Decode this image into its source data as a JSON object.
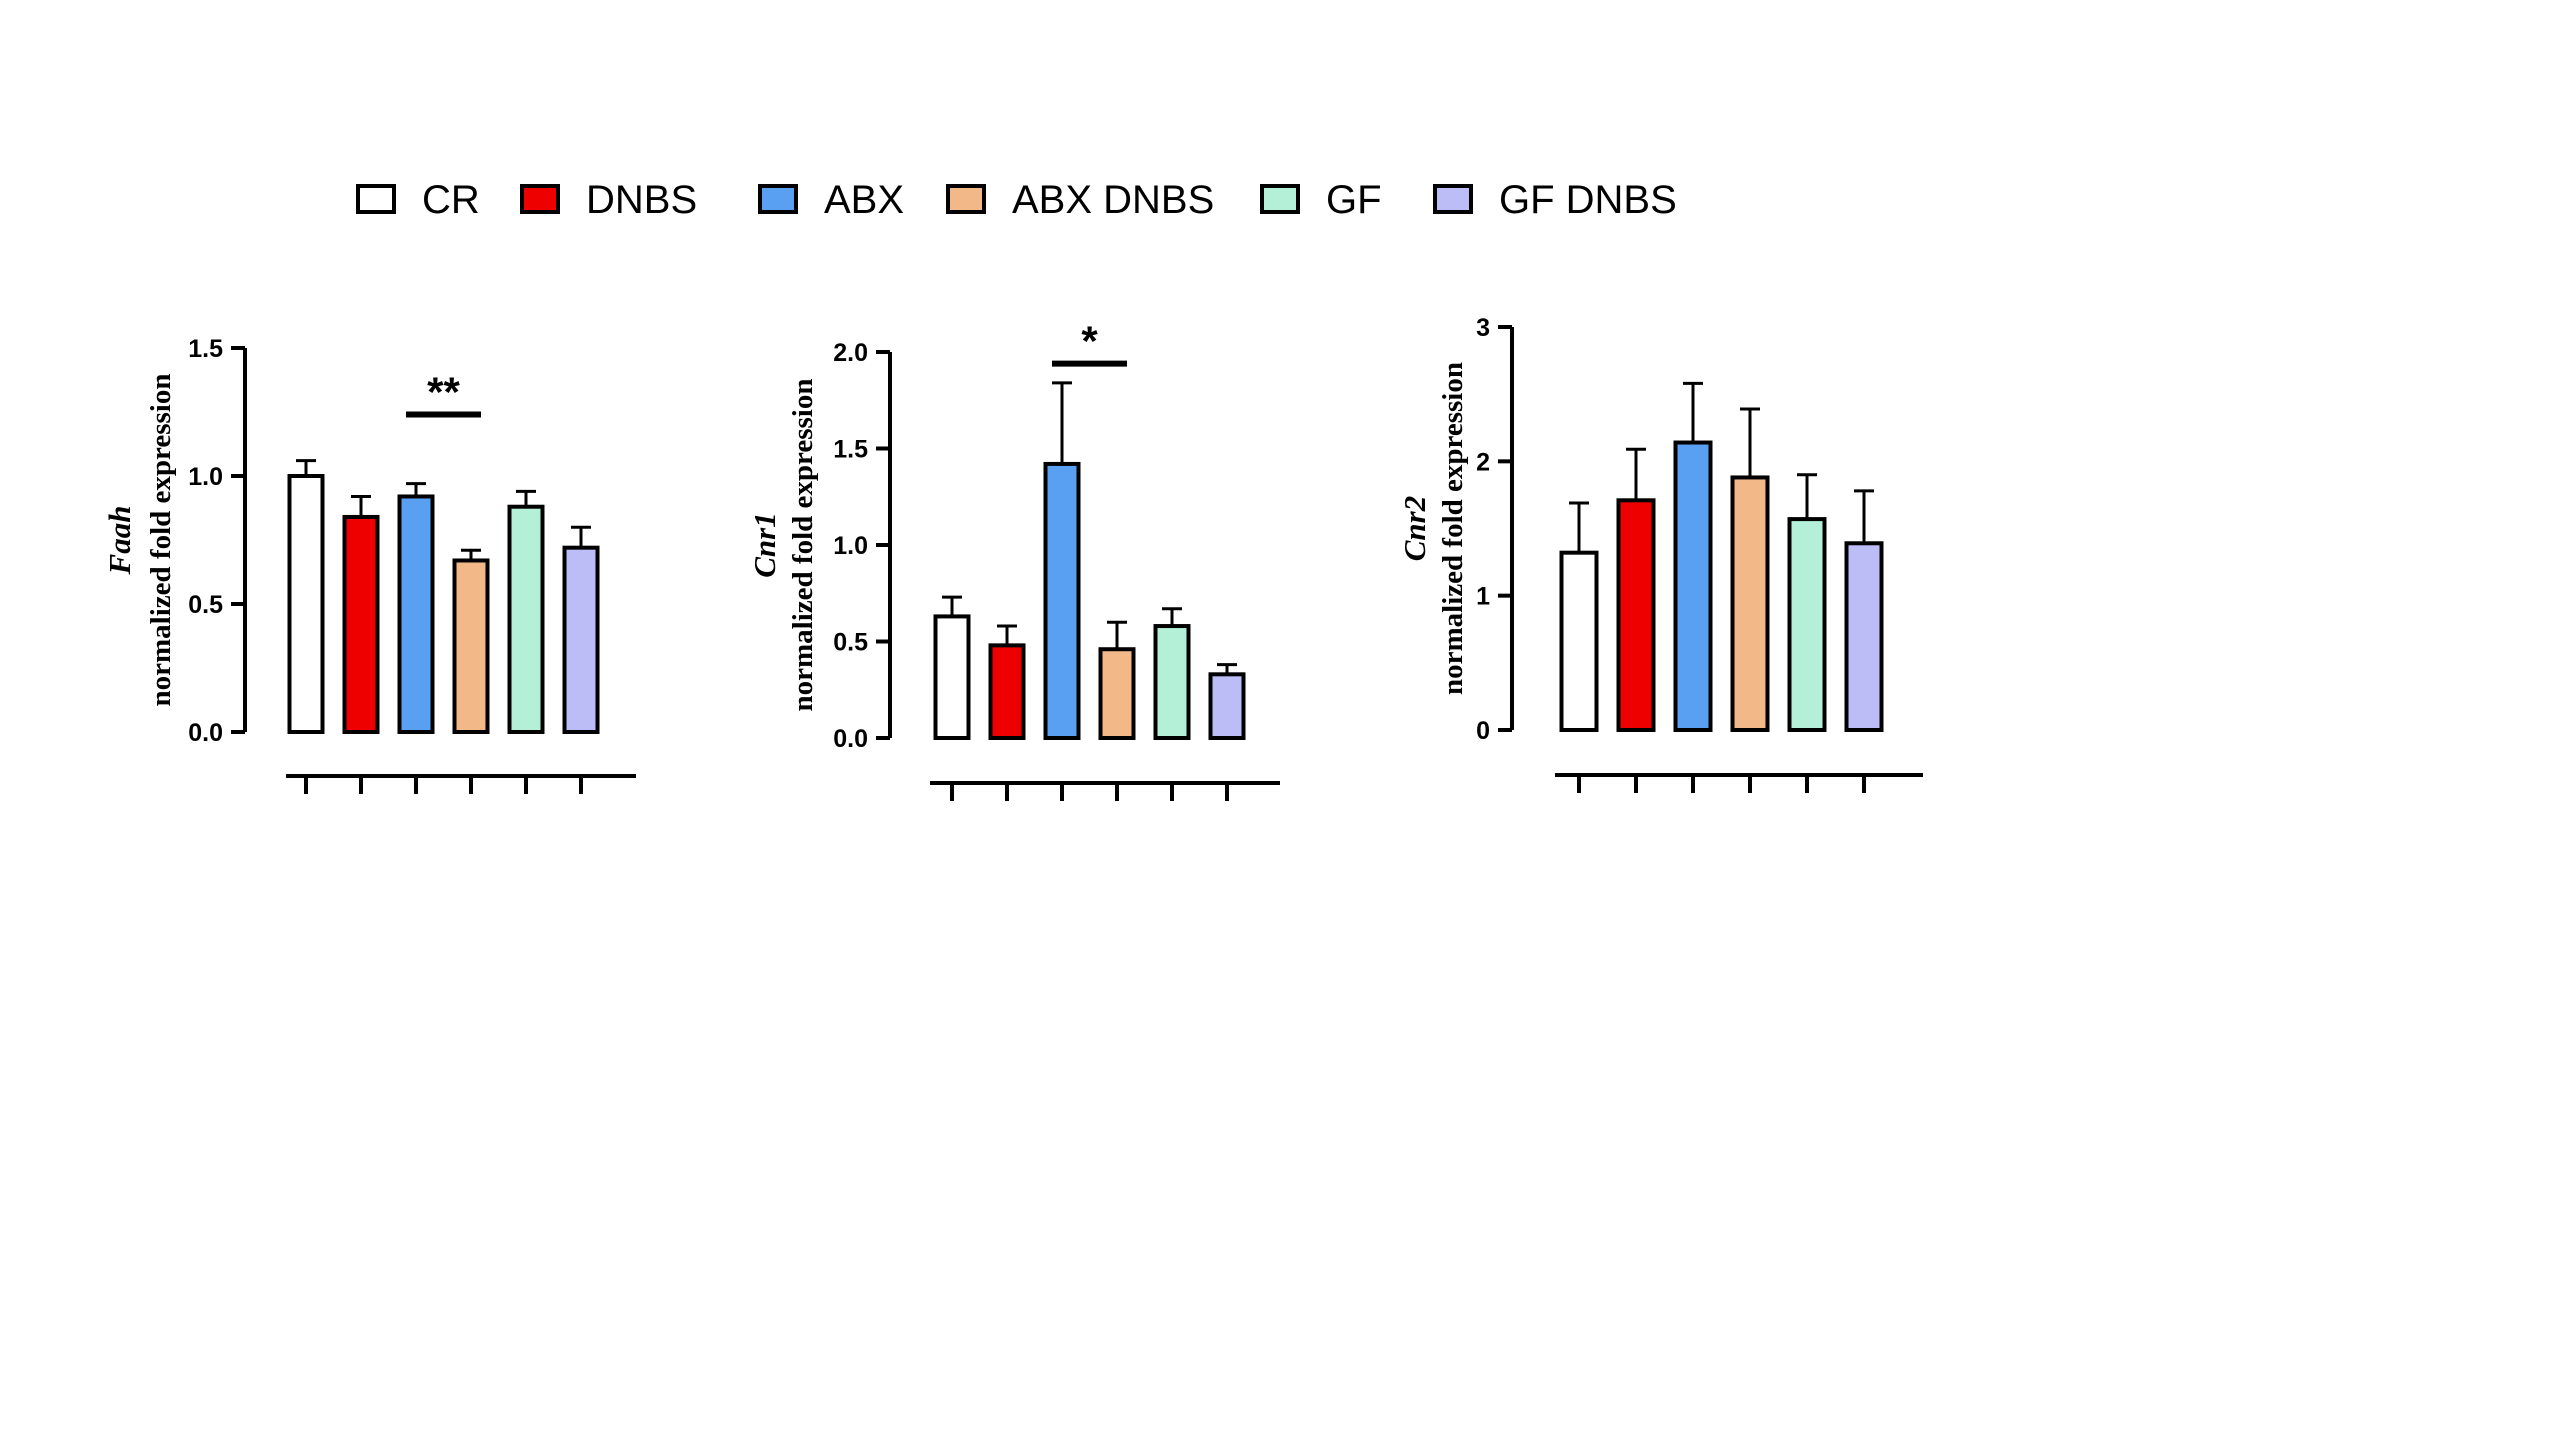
{
  "legend": [
    {
      "label": "CR",
      "color": "#ffffff"
    },
    {
      "label": "DNBS",
      "color": "#ee0000"
    },
    {
      "label": "ABX",
      "color": "#5aa0f2"
    },
    {
      "label": "ABX DNBS",
      "color": "#f2b888"
    },
    {
      "label": "GF",
      "color": "#b4f0d8"
    },
    {
      "label": "GF DNBS",
      "color": "#bcbcf6"
    }
  ],
  "chart_data": [
    {
      "type": "bar",
      "gene": "Faah",
      "ylabel": "normalized fold expression",
      "categories": [
        "CR",
        "DNBS",
        "ABX",
        "ABX DNBS",
        "GF",
        "GF DNBS"
      ],
      "values": [
        1.0,
        0.84,
        0.92,
        0.67,
        0.88,
        0.72
      ],
      "errors": [
        0.06,
        0.08,
        0.05,
        0.04,
        0.06,
        0.08
      ],
      "ylim": [
        0,
        1.5
      ],
      "yticks": [
        "0.0",
        "0.5",
        "1.0",
        "1.5"
      ],
      "significance": {
        "label": "**",
        "between": [
          2,
          3
        ]
      }
    },
    {
      "type": "bar",
      "gene": "Cnr1",
      "ylabel": "normalized fold expression",
      "categories": [
        "CR",
        "DNBS",
        "ABX",
        "ABX DNBS",
        "GF",
        "GF DNBS"
      ],
      "values": [
        0.63,
        0.48,
        1.42,
        0.46,
        0.58,
        0.33
      ],
      "errors": [
        0.1,
        0.1,
        0.42,
        0.14,
        0.09,
        0.05
      ],
      "ylim": [
        0,
        2.0
      ],
      "yticks": [
        "0.0",
        "0.5",
        "1.0",
        "1.5",
        "2.0"
      ],
      "significance": {
        "label": "*",
        "between": [
          2,
          3
        ]
      }
    },
    {
      "type": "bar",
      "gene": "Cnr2",
      "ylabel": "normalized fold expression",
      "categories": [
        "CR",
        "DNBS",
        "ABX",
        "ABX DNBS",
        "GF",
        "GF DNBS"
      ],
      "values": [
        1.32,
        1.71,
        2.14,
        1.88,
        1.57,
        1.39
      ],
      "errors": [
        0.37,
        0.38,
        0.44,
        0.51,
        0.33,
        0.39
      ],
      "ylim": [
        0,
        3
      ],
      "yticks": [
        "0",
        "1",
        "2",
        "3"
      ],
      "significance": null
    }
  ]
}
